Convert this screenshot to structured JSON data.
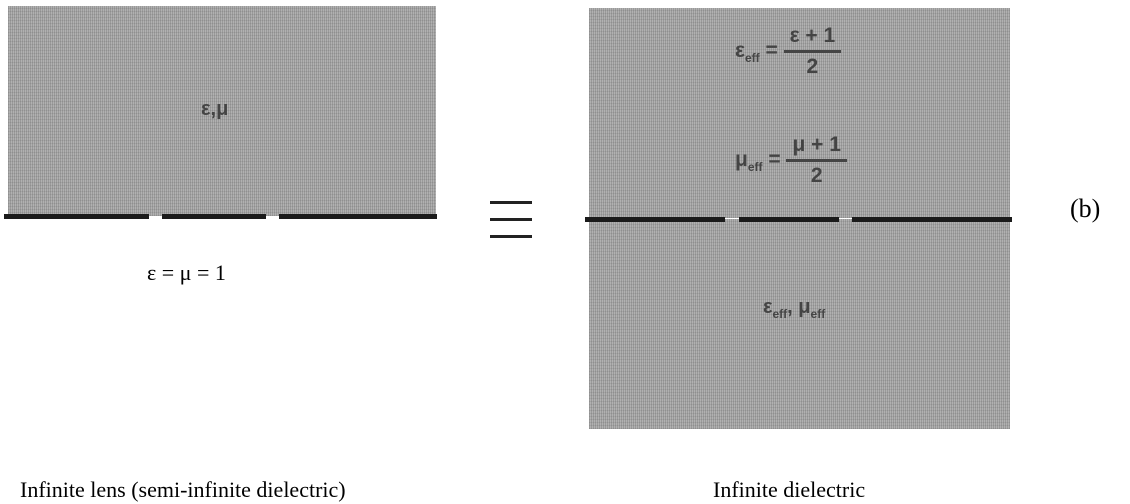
{
  "left_panel": {
    "region_label_eps": "ε",
    "region_label_sep": ",",
    "region_label_mu": "μ",
    "vacuum_label": "ε = μ = 1",
    "caption": "Infinite lens (semi-infinite dielectric)"
  },
  "equivalence_symbol": "≡",
  "right_panel": {
    "eps_eff": {
      "symbol": "ε",
      "subscript": "eff",
      "equals": "=",
      "numerator": "ε + 1",
      "denominator": "2"
    },
    "mu_eff": {
      "symbol": "μ",
      "subscript": "eff",
      "equals": "=",
      "numerator": "μ + 1",
      "denominator": "2"
    },
    "bottom_label": {
      "eps": "ε",
      "eps_sub": "eff",
      "sep": ",",
      "mu": "μ",
      "mu_sub": "eff"
    },
    "caption": "Infinite dielectric"
  },
  "panel_label": "(b)"
}
